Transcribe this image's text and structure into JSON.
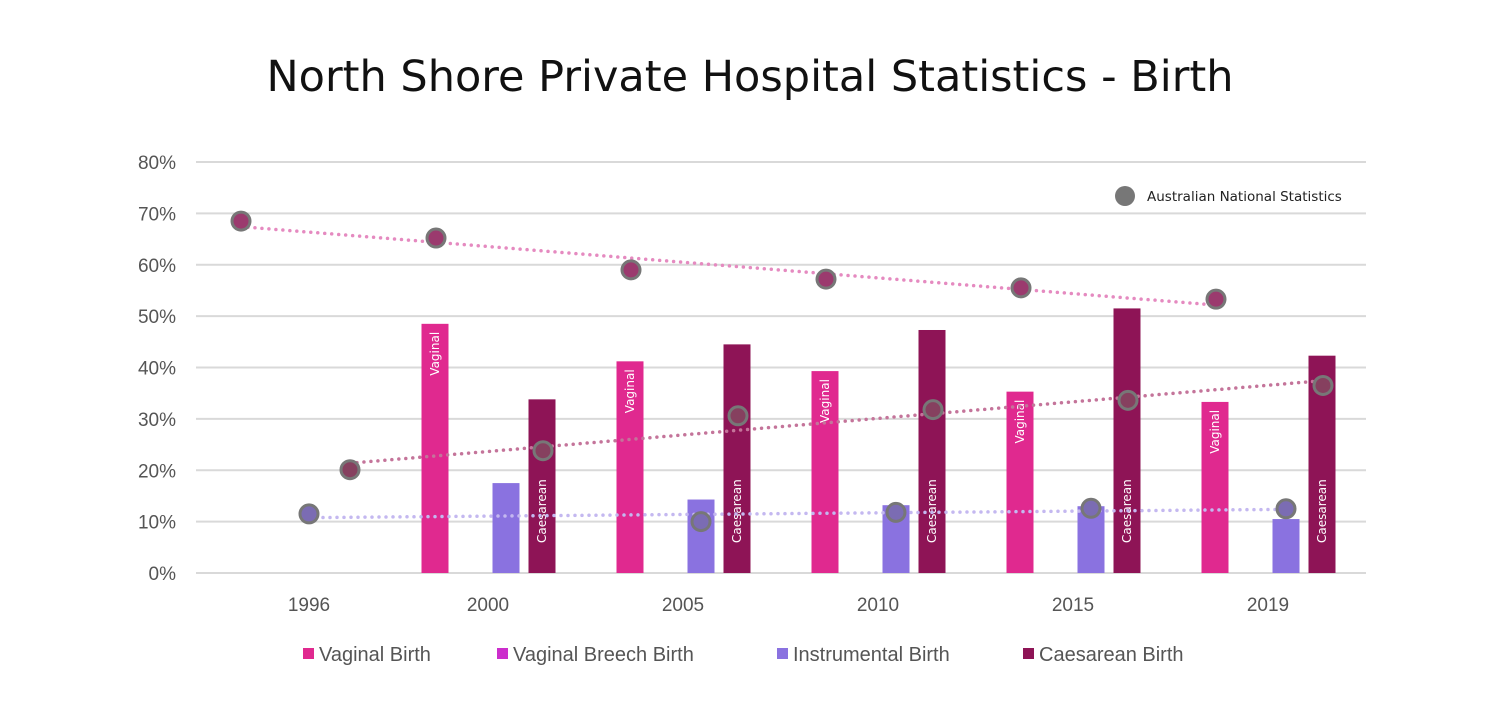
{
  "chart_data": {
    "type": "bar",
    "title": "North Shore Private Hospital Statistics - Birth",
    "xlabel": "",
    "ylabel": "",
    "ylim": [
      0,
      80
    ],
    "yticks": [
      "0%",
      "10%",
      "20%",
      "30%",
      "40%",
      "50%",
      "60%",
      "70%",
      "80%"
    ],
    "grid": true,
    "categories": [
      "1996",
      "2000",
      "2005",
      "2010",
      "2015",
      "2019"
    ],
    "series": [
      {
        "name": "Vaginal Birth",
        "color": "#e0298f",
        "bar_label": "Vaginal",
        "values": [
          null,
          48.5,
          41.2,
          39.3,
          35.3,
          33.3
        ]
      },
      {
        "name": "Vaginal Breech Birth",
        "color": "#cc2ecc",
        "bar_label": "",
        "values": [
          null,
          0,
          0,
          0,
          0,
          0
        ]
      },
      {
        "name": "Instrumental Birth",
        "color": "#8a72e0",
        "bar_label": "",
        "values": [
          null,
          17.5,
          14.3,
          13.2,
          13.0,
          10.5
        ]
      },
      {
        "name": "Caesarean Birth",
        "color": "#8e1456",
        "bar_label": "Caesarean",
        "values": [
          null,
          33.8,
          44.5,
          47.3,
          51.5,
          42.3
        ]
      }
    ],
    "national": {
      "name": "Australian National Statistics",
      "marker_color": "#777777",
      "legend_placement": "top-right",
      "series": [
        {
          "of": "Vaginal Birth",
          "fill": "#9b3a6e",
          "trend_color": "#e58ac0",
          "values": [
            68.5,
            65.2,
            59.0,
            57.2,
            55.5,
            53.3
          ]
        },
        {
          "of": "Instrumental Birth",
          "fill": "#7b6cb3",
          "trend_color": "#c4b8f0",
          "values": [
            11.5,
            null,
            10.0,
            11.8,
            12.6,
            12.5
          ]
        },
        {
          "of": "Caesarean Birth",
          "fill": "#86405f",
          "trend_color": "#c4749a",
          "values": [
            20.1,
            23.8,
            30.6,
            31.8,
            33.6,
            36.5
          ]
        }
      ]
    },
    "legend_placement": "bottom"
  }
}
